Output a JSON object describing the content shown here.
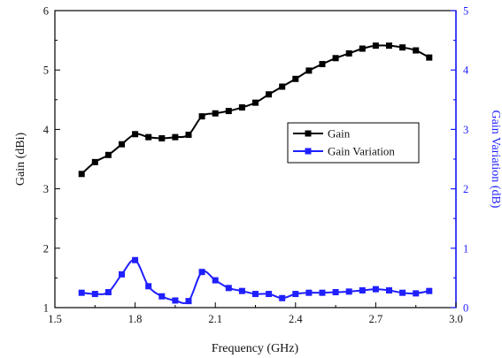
{
  "chart_data": {
    "type": "line",
    "xlabel": "Frequency (GHz)",
    "ylabel_left": "Gain (dBi)",
    "ylabel_right": "Gain Variation (dB)",
    "xlim": [
      1.5,
      3.0
    ],
    "ylim_left": [
      1,
      6
    ],
    "ylim_right": [
      0,
      5
    ],
    "x_ticks": [
      "1.5",
      "1.8",
      "2.1",
      "2.4",
      "2.7",
      "3.0"
    ],
    "y_left_ticks": [
      "1",
      "2",
      "3",
      "4",
      "5",
      "6"
    ],
    "y_right_ticks": [
      "0",
      "1",
      "2",
      "3",
      "4",
      "5"
    ],
    "grid": false,
    "legend_position": "center-right",
    "x": [
      1.6,
      1.65,
      1.7,
      1.75,
      1.8,
      1.85,
      1.9,
      1.95,
      2.0,
      2.05,
      2.1,
      2.15,
      2.2,
      2.25,
      2.3,
      2.35,
      2.4,
      2.45,
      2.5,
      2.55,
      2.6,
      2.65,
      2.7,
      2.75,
      2.8,
      2.85,
      2.9
    ],
    "series": [
      {
        "name": "Gain",
        "axis": "left",
        "color": "#000000",
        "values": [
          3.25,
          3.45,
          3.57,
          3.75,
          3.92,
          3.87,
          3.85,
          3.87,
          3.91,
          4.22,
          4.27,
          4.31,
          4.37,
          4.45,
          4.59,
          4.72,
          4.85,
          4.99,
          5.1,
          5.2,
          5.28,
          5.36,
          5.41,
          5.41,
          5.38,
          5.33,
          5.21
        ]
      },
      {
        "name": "Gain Variation",
        "axis": "right",
        "color": "#1f1fff",
        "values": [
          0.25,
          0.23,
          0.26,
          0.56,
          0.8,
          0.36,
          0.19,
          0.12,
          0.11,
          0.6,
          0.46,
          0.33,
          0.28,
          0.23,
          0.23,
          0.16,
          0.23,
          0.25,
          0.25,
          0.26,
          0.27,
          0.29,
          0.31,
          0.29,
          0.25,
          0.24,
          0.28
        ]
      }
    ]
  }
}
